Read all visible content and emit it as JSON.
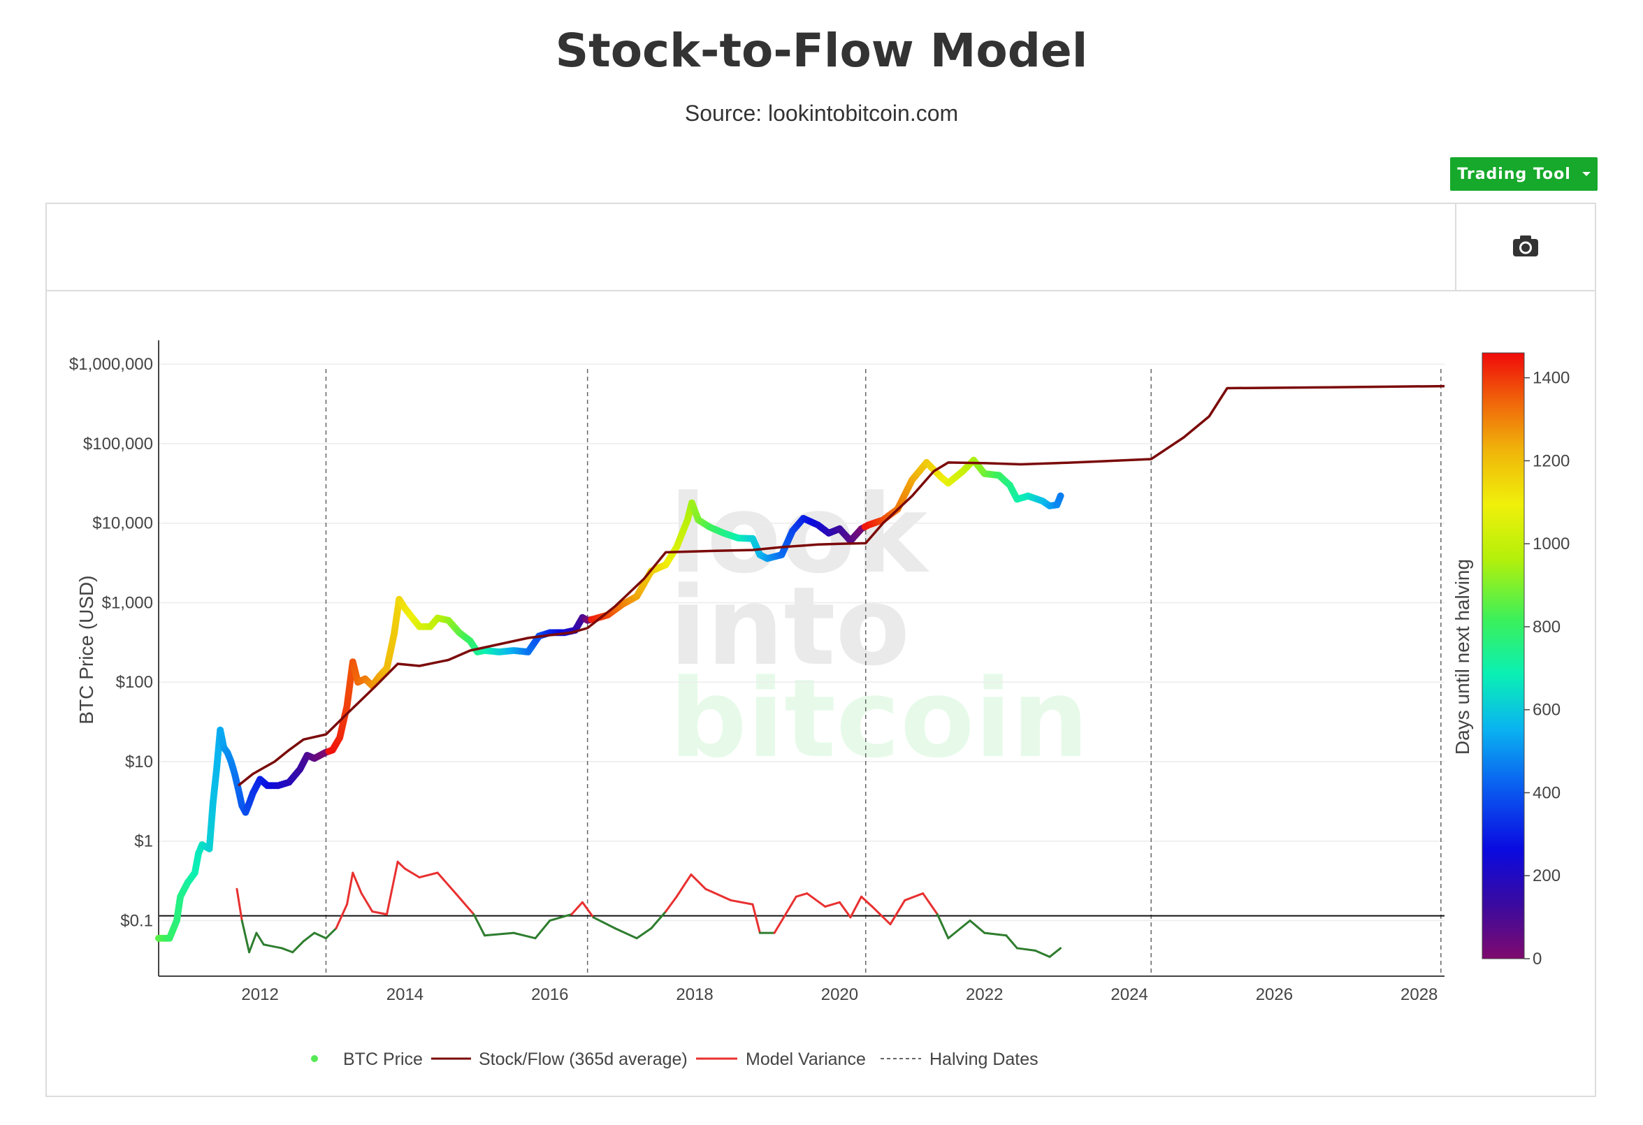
{
  "header": {
    "title": "Stock-to-Flow Model",
    "subtitle": "Source: lookintobitcoin.com",
    "trading_tool_label": "Trading Tool"
  },
  "toolbar": {
    "camera_icon": "camera-icon"
  },
  "watermark": {
    "line1": "look",
    "line2": "into",
    "line3": "bitcoin"
  },
  "colors": {
    "stock_flow": "#7b0a0a",
    "variance_high": "#e83030",
    "variance_low": "#2e7d2e",
    "halving": "#666666",
    "button": "#16a92b"
  },
  "chart_data": {
    "type": "scatter",
    "title": "",
    "xlabel": "",
    "ylabel": "BTC Price (USD)",
    "y_scale": "log",
    "xlim": [
      2010.6,
      2028.35
    ],
    "ylim": [
      0.02,
      2000000
    ],
    "x_ticks": [
      2012,
      2014,
      2016,
      2018,
      2020,
      2022,
      2024,
      2026,
      2028
    ],
    "x_tick_labels": [
      "2012",
      "2014",
      "2016",
      "2018",
      "2020",
      "2022",
      "2024",
      "2026",
      "2028"
    ],
    "y_ticks": [
      0.1,
      1,
      10,
      100,
      1000,
      10000,
      100000,
      1000000
    ],
    "y_tick_labels": [
      "$0.1",
      "$1",
      "$10",
      "$100",
      "$1,000",
      "$10,000",
      "$100,000",
      "$1,000,000"
    ],
    "colorbar": {
      "title": "Days until next halving",
      "min": 0,
      "max": 1460,
      "ticks": [
        0,
        200,
        400,
        600,
        800,
        1000,
        1200,
        1400
      ],
      "colorscale": [
        "#7f0a6e",
        "#3a0aa0",
        "#0a0ae0",
        "#0a5af0",
        "#0ab4f0",
        "#0af0b4",
        "#3cf05a",
        "#b4f00a",
        "#f0f00a",
        "#f0b40a",
        "#f0640a",
        "#f00a0a"
      ]
    },
    "halving_dates": [
      2012.91,
      2016.52,
      2020.36,
      2024.3,
      2028.3
    ],
    "reference_line_y": 0.115,
    "legend": [
      "BTC Price",
      "Stock/Flow (365d average)",
      "Model Variance",
      "Halving Dates"
    ],
    "legend_position": "bottom-center",
    "series": [
      {
        "name": "BTC Price",
        "style": "markers, colored by days until next halving",
        "points": [
          [
            2010.6,
            0.06,
            830
          ],
          [
            2010.75,
            0.06,
            780
          ],
          [
            2010.85,
            0.1,
            750
          ],
          [
            2010.9,
            0.2,
            730
          ],
          [
            2011.0,
            0.3,
            700
          ],
          [
            2011.1,
            0.4,
            670
          ],
          [
            2011.15,
            0.7,
            650
          ],
          [
            2011.2,
            0.9,
            630
          ],
          [
            2011.3,
            0.8,
            600
          ],
          [
            2011.35,
            3,
            560
          ],
          [
            2011.4,
            8,
            540
          ],
          [
            2011.45,
            25,
            520
          ],
          [
            2011.5,
            15,
            500
          ],
          [
            2011.55,
            13,
            480
          ],
          [
            2011.6,
            10,
            460
          ],
          [
            2011.65,
            7,
            440
          ],
          [
            2011.7,
            4.5,
            420
          ],
          [
            2011.75,
            2.8,
            400
          ],
          [
            2011.8,
            2.3,
            380
          ],
          [
            2011.85,
            3,
            360
          ],
          [
            2011.9,
            4,
            340
          ],
          [
            2012.0,
            6,
            310
          ],
          [
            2012.1,
            5,
            280
          ],
          [
            2012.25,
            5,
            230
          ],
          [
            2012.4,
            5.5,
            190
          ],
          [
            2012.55,
            8,
            140
          ],
          [
            2012.65,
            12,
            100
          ],
          [
            2012.75,
            11,
            60
          ],
          [
            2012.9,
            13,
            10
          ],
          [
            2013.0,
            14,
            1450
          ],
          [
            2013.1,
            20,
            1420
          ],
          [
            2013.2,
            50,
            1380
          ],
          [
            2013.28,
            180,
            1350
          ],
          [
            2013.35,
            100,
            1320
          ],
          [
            2013.45,
            110,
            1290
          ],
          [
            2013.55,
            90,
            1250
          ],
          [
            2013.65,
            120,
            1220
          ],
          [
            2013.75,
            150,
            1180
          ],
          [
            2013.85,
            400,
            1150
          ],
          [
            2013.92,
            1100,
            1120
          ],
          [
            2014.0,
            850,
            1090
          ],
          [
            2014.1,
            650,
            1060
          ],
          [
            2014.2,
            500,
            1020
          ],
          [
            2014.35,
            500,
            980
          ],
          [
            2014.45,
            640,
            950
          ],
          [
            2014.6,
            600,
            900
          ],
          [
            2014.75,
            420,
            840
          ],
          [
            2014.9,
            330,
            780
          ],
          [
            2015.0,
            240,
            720
          ],
          [
            2015.1,
            250,
            680
          ],
          [
            2015.3,
            240,
            600
          ],
          [
            2015.5,
            250,
            520
          ],
          [
            2015.7,
            240,
            440
          ],
          [
            2015.85,
            380,
            380
          ],
          [
            2016.0,
            420,
            320
          ],
          [
            2016.2,
            420,
            250
          ],
          [
            2016.35,
            450,
            180
          ],
          [
            2016.45,
            650,
            110
          ],
          [
            2016.52,
            600,
            20
          ],
          [
            2016.6,
            620,
            1430
          ],
          [
            2016.8,
            700,
            1370
          ],
          [
            2017.0,
            950,
            1290
          ],
          [
            2017.2,
            1200,
            1220
          ],
          [
            2017.4,
            2500,
            1150
          ],
          [
            2017.6,
            3000,
            1080
          ],
          [
            2017.75,
            5000,
            1010
          ],
          [
            2017.9,
            11000,
            940
          ],
          [
            2017.96,
            18000,
            910
          ],
          [
            2018.05,
            11000,
            870
          ],
          [
            2018.2,
            9000,
            810
          ],
          [
            2018.4,
            7500,
            740
          ],
          [
            2018.6,
            6500,
            670
          ],
          [
            2018.8,
            6400,
            590
          ],
          [
            2018.9,
            4000,
            540
          ],
          [
            2019.0,
            3600,
            500
          ],
          [
            2019.2,
            4000,
            430
          ],
          [
            2019.35,
            8000,
            370
          ],
          [
            2019.5,
            11500,
            310
          ],
          [
            2019.7,
            9500,
            240
          ],
          [
            2019.85,
            7500,
            180
          ],
          [
            2020.0,
            8500,
            130
          ],
          [
            2020.15,
            6000,
            80
          ],
          [
            2020.3,
            8500,
            20
          ],
          [
            2020.4,
            9500,
            1440
          ],
          [
            2020.6,
            11000,
            1370
          ],
          [
            2020.8,
            15000,
            1300
          ],
          [
            2021.0,
            35000,
            1220
          ],
          [
            2021.2,
            58000,
            1150
          ],
          [
            2021.4,
            38000,
            1080
          ],
          [
            2021.5,
            32000,
            1040
          ],
          [
            2021.7,
            45000,
            980
          ],
          [
            2021.85,
            62000,
            920
          ],
          [
            2022.0,
            42000,
            860
          ],
          [
            2022.2,
            40000,
            790
          ],
          [
            2022.35,
            30000,
            730
          ],
          [
            2022.45,
            20000,
            690
          ],
          [
            2022.6,
            22000,
            640
          ],
          [
            2022.8,
            19000,
            560
          ],
          [
            2022.9,
            16500,
            510
          ],
          [
            2023.0,
            17000,
            470
          ],
          [
            2023.05,
            22000,
            450
          ]
        ]
      },
      {
        "name": "Stock/Flow (365d average)",
        "points": [
          [
            2011.7,
            5
          ],
          [
            2011.9,
            7
          ],
          [
            2012.2,
            10
          ],
          [
            2012.4,
            14
          ],
          [
            2012.6,
            19
          ],
          [
            2012.91,
            22
          ],
          [
            2013.2,
            40
          ],
          [
            2013.6,
            90
          ],
          [
            2013.9,
            170
          ],
          [
            2014.2,
            160
          ],
          [
            2014.6,
            190
          ],
          [
            2014.9,
            250
          ],
          [
            2015.3,
            300
          ],
          [
            2015.7,
            360
          ],
          [
            2016.0,
            390
          ],
          [
            2016.3,
            420
          ],
          [
            2016.52,
            480
          ],
          [
            2016.9,
            900
          ],
          [
            2017.3,
            2000
          ],
          [
            2017.6,
            4300
          ],
          [
            2018.3,
            4500
          ],
          [
            2018.8,
            4600
          ],
          [
            2019.2,
            5000
          ],
          [
            2019.7,
            5400
          ],
          [
            2020.0,
            5500
          ],
          [
            2020.36,
            5600
          ],
          [
            2020.6,
            10000
          ],
          [
            2021.0,
            22000
          ],
          [
            2021.3,
            45000
          ],
          [
            2021.5,
            58000
          ],
          [
            2022.0,
            57000
          ],
          [
            2022.5,
            55000
          ],
          [
            2023.0,
            57000
          ],
          [
            2023.6,
            60000
          ],
          [
            2024.3,
            64000
          ],
          [
            2024.75,
            120000
          ],
          [
            2025.1,
            220000
          ],
          [
            2025.35,
            500000
          ],
          [
            2026.5,
            510000
          ],
          [
            2028.35,
            530000
          ]
        ]
      },
      {
        "name": "Model Variance",
        "points": [
          [
            2011.68,
            0.25
          ],
          [
            2011.75,
            0.1
          ],
          [
            2011.85,
            0.04
          ],
          [
            2011.95,
            0.07
          ],
          [
            2012.05,
            0.05
          ],
          [
            2012.3,
            0.045
          ],
          [
            2012.45,
            0.04
          ],
          [
            2012.6,
            0.055
          ],
          [
            2012.75,
            0.07
          ],
          [
            2012.91,
            0.06
          ],
          [
            2013.05,
            0.08
          ],
          [
            2013.2,
            0.16
          ],
          [
            2013.28,
            0.4
          ],
          [
            2013.4,
            0.22
          ],
          [
            2013.55,
            0.13
          ],
          [
            2013.75,
            0.12
          ],
          [
            2013.9,
            0.55
          ],
          [
            2014.0,
            0.45
          ],
          [
            2014.2,
            0.35
          ],
          [
            2014.45,
            0.4
          ],
          [
            2014.7,
            0.22
          ],
          [
            2014.95,
            0.12
          ],
          [
            2015.1,
            0.065
          ],
          [
            2015.5,
            0.07
          ],
          [
            2015.8,
            0.06
          ],
          [
            2016.0,
            0.1
          ],
          [
            2016.3,
            0.12
          ],
          [
            2016.45,
            0.17
          ],
          [
            2016.6,
            0.11
          ],
          [
            2016.9,
            0.08
          ],
          [
            2017.2,
            0.06
          ],
          [
            2017.4,
            0.08
          ],
          [
            2017.6,
            0.13
          ],
          [
            2017.75,
            0.2
          ],
          [
            2017.95,
            0.38
          ],
          [
            2018.15,
            0.25
          ],
          [
            2018.5,
            0.18
          ],
          [
            2018.8,
            0.16
          ],
          [
            2018.9,
            0.07
          ],
          [
            2019.1,
            0.07
          ],
          [
            2019.4,
            0.2
          ],
          [
            2019.55,
            0.22
          ],
          [
            2019.8,
            0.15
          ],
          [
            2020.0,
            0.17
          ],
          [
            2020.15,
            0.11
          ],
          [
            2020.3,
            0.2
          ],
          [
            2020.45,
            0.15
          ],
          [
            2020.7,
            0.09
          ],
          [
            2020.9,
            0.18
          ],
          [
            2021.15,
            0.22
          ],
          [
            2021.35,
            0.12
          ],
          [
            2021.5,
            0.06
          ],
          [
            2021.8,
            0.1
          ],
          [
            2022.0,
            0.07
          ],
          [
            2022.3,
            0.065
          ],
          [
            2022.45,
            0.045
          ],
          [
            2022.7,
            0.042
          ],
          [
            2022.9,
            0.035
          ],
          [
            2023.05,
            0.045
          ]
        ]
      },
      {
        "name": "Halving Dates",
        "x": [
          2012.91,
          2016.52,
          2020.36,
          2024.3,
          2028.3
        ]
      }
    ]
  }
}
